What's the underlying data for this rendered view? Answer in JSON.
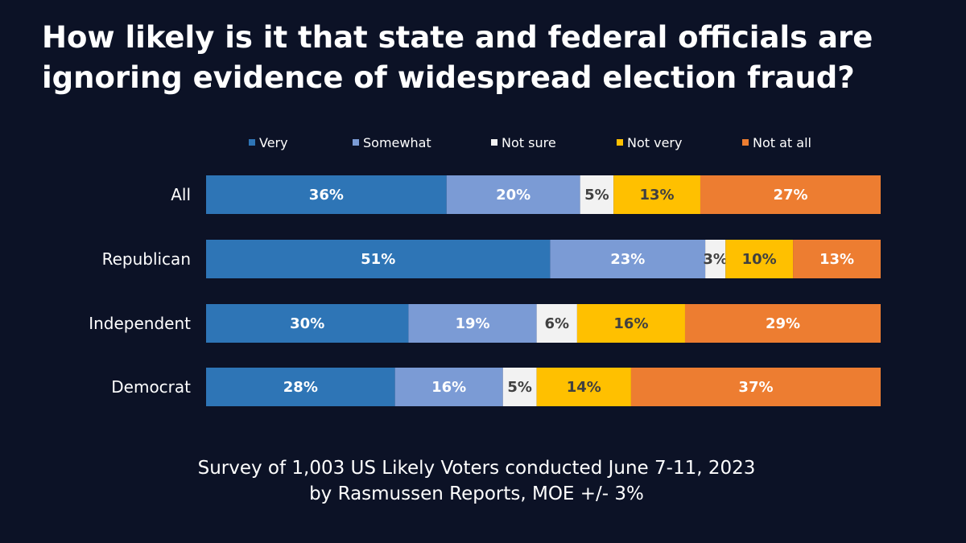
{
  "title": "How likely is it that state and federal officials are ignoring evidence of widespread election fraud?",
  "footnote": {
    "line1": "Survey of 1,003 US Likely Voters conducted June 7-11, 2023",
    "line2": "by Rasmussen Reports, MOE +/- 3%"
  },
  "chart_data": {
    "type": "bar",
    "orientation": "horizontal",
    "stacked": true,
    "legend_position": "top",
    "grid": false,
    "categories": [
      "All",
      "Republican",
      "Independent",
      "Democrat"
    ],
    "series": [
      {
        "name": "Very",
        "color": "#2e75b6",
        "label_color": "#ffffff",
        "values": [
          36,
          51,
          30,
          28
        ]
      },
      {
        "name": "Somewhat",
        "color": "#7b9bd5",
        "label_color": "#ffffff",
        "values": [
          20,
          23,
          19,
          16
        ]
      },
      {
        "name": "Not sure",
        "color": "#f2f2f2",
        "label_color": "#404040",
        "values": [
          5,
          3,
          6,
          5
        ]
      },
      {
        "name": "Not very",
        "color": "#ffc000",
        "label_color": "#404040",
        "values": [
          13,
          10,
          16,
          14
        ]
      },
      {
        "name": "Not at all",
        "color": "#ed7d31",
        "label_color": "#ffffff",
        "values": [
          27,
          13,
          29,
          37
        ]
      }
    ],
    "value_suffix": "%"
  }
}
